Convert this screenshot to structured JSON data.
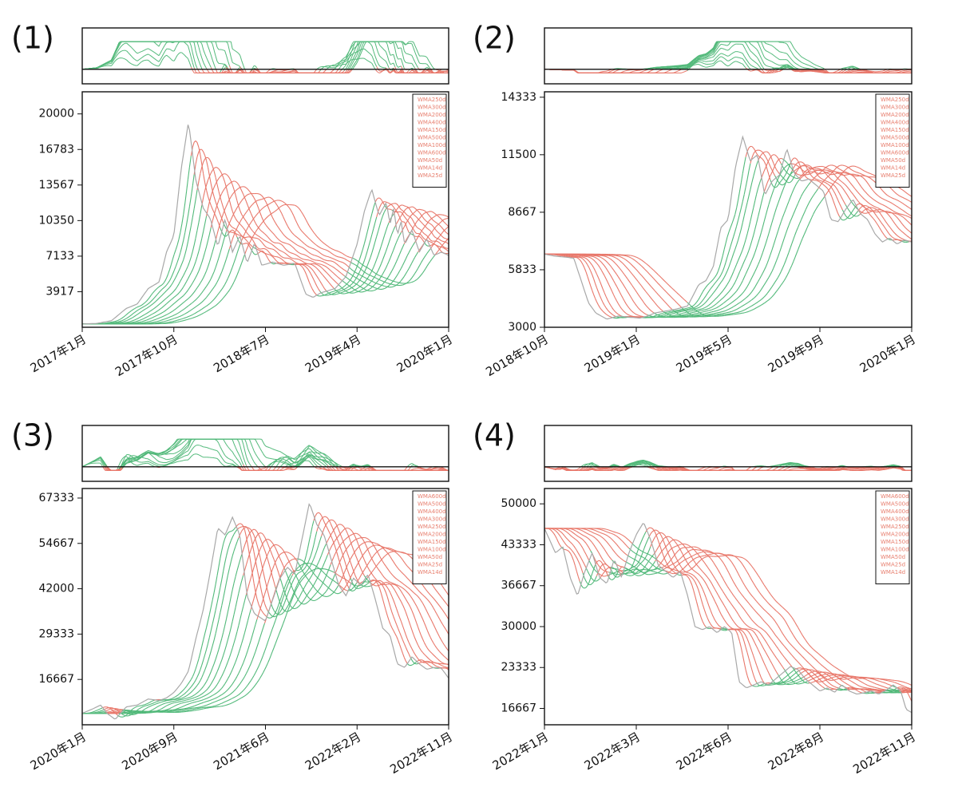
{
  "colors": {
    "bull": "#52b97a",
    "bear": "#e8776a",
    "price": "#a8a8a8",
    "frame": "#111111",
    "legend_text": "#e88070"
  },
  "chart_data": [
    {
      "type": "line",
      "label": "(1)",
      "title": "",
      "x_ticks": [
        "2017年1月",
        "2017年10月",
        "2018年7月",
        "2019年4月",
        "2020年1月"
      ],
      "y_ticks": [
        3917,
        7133,
        10350,
        13567,
        16783,
        20000
      ],
      "ylim": [
        700,
        22000
      ],
      "legend": [
        "WMA250d",
        "WMA300d",
        "WMA200d",
        "WMA400d",
        "WMA150d",
        "WMA500d",
        "WMA100d",
        "WMA600d",
        "WMA50d",
        "WMA14d",
        "WMA25d"
      ],
      "price": {
        "name": "price",
        "x": [
          0,
          0.04,
          0.08,
          0.12,
          0.15,
          0.18,
          0.21,
          0.23,
          0.25,
          0.27,
          0.29,
          0.31,
          0.33,
          0.35,
          0.37,
          0.39,
          0.41,
          0.43,
          0.45,
          0.47,
          0.49,
          0.52,
          0.55,
          0.58,
          0.61,
          0.63,
          0.65,
          0.67,
          0.69,
          0.72,
          0.75,
          0.77,
          0.79,
          0.81,
          0.83,
          0.84,
          0.85,
          0.86,
          0.87,
          0.88,
          0.9,
          0.92,
          0.94,
          0.96,
          0.98,
          1.0
        ],
        "y": [
          1000,
          1050,
          1300,
          2400,
          2800,
          4200,
          4800,
          7500,
          9000,
          15000,
          19300,
          14000,
          11500,
          10500,
          8000,
          10500,
          7500,
          9000,
          6500,
          8300,
          6300,
          6600,
          6300,
          6500,
          3700,
          3400,
          3800,
          4000,
          4200,
          5300,
          8200,
          11200,
          13200,
          10800,
          12000,
          10000,
          11500,
          9000,
          10300,
          8200,
          9500,
          7500,
          8700,
          7200,
          7500,
          7200
        ]
      },
      "band": {
        "deltas": [
          0.012,
          0.025,
          0.04,
          0.06,
          0.08,
          0.105,
          0.13,
          0.16,
          0.19,
          0.22,
          0.25
        ],
        "smooth": [
          0.05,
          0.075,
          0.1,
          0.13,
          0.16,
          0.19,
          0.22,
          0.25,
          0.28,
          0.31,
          0.34
        ]
      },
      "osc": {
        "bull_scale": 1.0,
        "bear_scale": 1.0
      }
    },
    {
      "type": "line",
      "label": "(2)",
      "title": "",
      "x_ticks": [
        "2018年10月",
        "2019年1月",
        "2019年5月",
        "2019年9月",
        "2020年1月"
      ],
      "y_ticks": [
        3000,
        5833,
        8667,
        11500,
        14333
      ],
      "ylim": [
        3000,
        14600
      ],
      "legend": [
        "WMA250d",
        "WMA300d",
        "WMA200d",
        "WMA400d",
        "WMA150d",
        "WMA500d",
        "WMA100d",
        "WMA600d",
        "WMA50d",
        "WMA14d",
        "WMA25d"
      ],
      "price": {
        "name": "price",
        "x": [
          0,
          0.03,
          0.06,
          0.08,
          0.1,
          0.12,
          0.14,
          0.17,
          0.2,
          0.23,
          0.26,
          0.28,
          0.3,
          0.33,
          0.36,
          0.39,
          0.42,
          0.44,
          0.46,
          0.48,
          0.5,
          0.52,
          0.54,
          0.56,
          0.58,
          0.6,
          0.62,
          0.64,
          0.66,
          0.68,
          0.7,
          0.72,
          0.74,
          0.76,
          0.78,
          0.8,
          0.82,
          0.84,
          0.86,
          0.88,
          0.9,
          0.92,
          0.94,
          0.96,
          0.98,
          1.0
        ],
        "y": [
          6600,
          6500,
          6450,
          6400,
          5300,
          4200,
          3700,
          3400,
          3550,
          3500,
          3450,
          3550,
          3700,
          3800,
          3900,
          4050,
          5100,
          5300,
          6000,
          7900,
          8300,
          10900,
          12400,
          11200,
          11500,
          9500,
          10200,
          10500,
          11800,
          10600,
          10200,
          10300,
          10000,
          9700,
          8300,
          8200,
          8800,
          9300,
          8600,
          8300,
          7600,
          7200,
          7400,
          7100,
          7300,
          7200
        ]
      },
      "band": {
        "deltas": [
          0.012,
          0.025,
          0.04,
          0.06,
          0.08,
          0.105,
          0.13,
          0.16,
          0.19,
          0.22,
          0.25
        ],
        "smooth": [
          0.05,
          0.075,
          0.1,
          0.13,
          0.16,
          0.19,
          0.22,
          0.25,
          0.28,
          0.31,
          0.34
        ]
      },
      "osc": {
        "bull_scale": 1.0,
        "bear_scale": 1.0
      }
    },
    {
      "type": "line",
      "label": "(3)",
      "title": "",
      "x_ticks": [
        "2020年1月",
        "2020年9月",
        "2021年6月",
        "2022年2月",
        "2022年11月"
      ],
      "y_ticks": [
        16667,
        29333,
        42000,
        54667,
        67333
      ],
      "ylim": [
        4000,
        70000
      ],
      "legend": [
        "WMA600d",
        "WMA500d",
        "WMA400d",
        "WMA300d",
        "WMA250d",
        "WMA200d",
        "WMA150d",
        "WMA100d",
        "WMA50d",
        "WMA25d",
        "WMA14d"
      ],
      "price": {
        "name": "price",
        "x": [
          0,
          0.03,
          0.05,
          0.07,
          0.09,
          0.12,
          0.15,
          0.18,
          0.21,
          0.23,
          0.25,
          0.27,
          0.29,
          0.31,
          0.33,
          0.35,
          0.37,
          0.39,
          0.41,
          0.43,
          0.45,
          0.47,
          0.5,
          0.52,
          0.54,
          0.56,
          0.58,
          0.6,
          0.62,
          0.64,
          0.66,
          0.68,
          0.7,
          0.72,
          0.74,
          0.76,
          0.78,
          0.8,
          0.82,
          0.84,
          0.86,
          0.88,
          0.9,
          0.92,
          0.94,
          0.96,
          0.98,
          1.0
        ],
        "y": [
          7200,
          8500,
          9500,
          7000,
          5500,
          9000,
          9500,
          11200,
          10800,
          11500,
          13000,
          15500,
          19000,
          28000,
          36000,
          47000,
          59000,
          57000,
          62000,
          57000,
          40000,
          35000,
          33000,
          39000,
          45000,
          48000,
          46000,
          56000,
          66000,
          60000,
          57000,
          50000,
          43000,
          40000,
          45000,
          43000,
          46000,
          39000,
          31000,
          29000,
          21000,
          20000,
          23000,
          21000,
          19500,
          20000,
          19800,
          17000
        ]
      },
      "band": {
        "deltas": [
          0.012,
          0.025,
          0.04,
          0.06,
          0.08,
          0.105,
          0.13,
          0.16,
          0.19,
          0.22,
          0.25
        ],
        "smooth": [
          0.05,
          0.075,
          0.1,
          0.13,
          0.16,
          0.19,
          0.22,
          0.25,
          0.28,
          0.31,
          0.34
        ]
      },
      "osc": {
        "bull_scale": 1.0,
        "bear_scale": 1.0
      }
    },
    {
      "type": "line",
      "label": "(4)",
      "title": "",
      "x_ticks": [
        "2022年1月",
        "2022年3月",
        "2022年6月",
        "2022年8月",
        "2022年11月"
      ],
      "y_ticks": [
        16667,
        23333,
        30000,
        36667,
        43333,
        50000
      ],
      "ylim": [
        14000,
        52500
      ],
      "legend": [
        "WMA600d",
        "WMA500d",
        "WMA400d",
        "WMA300d",
        "WMA250d",
        "WMA200d",
        "WMA150d",
        "WMA100d",
        "WMA50d",
        "WMA25d",
        "WMA14d"
      ],
      "price": {
        "name": "price",
        "x": [
          0,
          0.03,
          0.05,
          0.07,
          0.09,
          0.11,
          0.13,
          0.15,
          0.17,
          0.19,
          0.21,
          0.23,
          0.25,
          0.27,
          0.29,
          0.31,
          0.33,
          0.35,
          0.37,
          0.39,
          0.41,
          0.43,
          0.45,
          0.47,
          0.49,
          0.51,
          0.53,
          0.55,
          0.57,
          0.59,
          0.61,
          0.63,
          0.65,
          0.67,
          0.69,
          0.71,
          0.73,
          0.75,
          0.77,
          0.79,
          0.81,
          0.83,
          0.85,
          0.87,
          0.89,
          0.91,
          0.93,
          0.95,
          0.97,
          0.985,
          1.0
        ],
        "y": [
          46000,
          42000,
          43000,
          38000,
          35000,
          39000,
          42000,
          38000,
          37000,
          41000,
          38000,
          42000,
          45000,
          47000,
          44000,
          40000,
          39000,
          38000,
          39000,
          35000,
          30000,
          29500,
          30000,
          29000,
          30000,
          29000,
          21000,
          20000,
          20500,
          21000,
          20500,
          21500,
          22500,
          23500,
          23000,
          21500,
          20500,
          19500,
          20000,
          19300,
          20500,
          19500,
          19000,
          19200,
          19500,
          19000,
          19600,
          20500,
          19500,
          16500,
          16000
        ]
      },
      "band": {
        "deltas": [
          0.012,
          0.025,
          0.04,
          0.06,
          0.08,
          0.105,
          0.13,
          0.16,
          0.19,
          0.22,
          0.25
        ],
        "smooth": [
          0.05,
          0.075,
          0.1,
          0.13,
          0.16,
          0.19,
          0.22,
          0.25,
          0.28,
          0.31,
          0.34
        ]
      },
      "osc": {
        "bull_scale": 1.0,
        "bear_scale": 1.0
      }
    }
  ]
}
